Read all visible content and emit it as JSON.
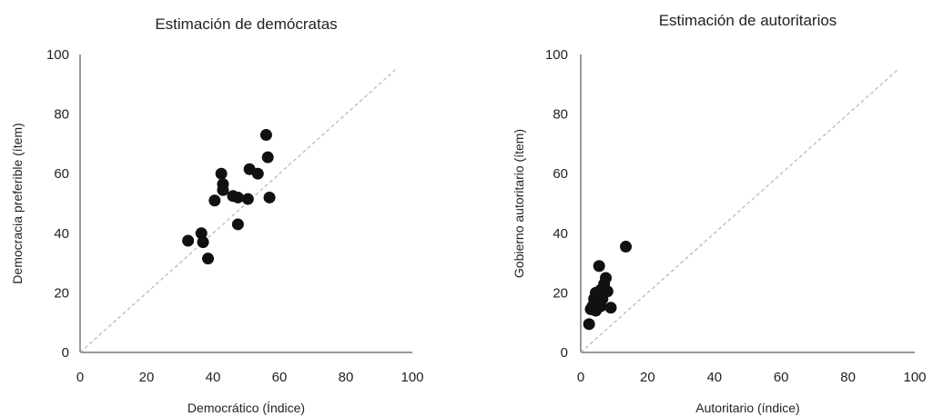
{
  "chart_data": [
    {
      "type": "scatter",
      "title": "Estimación de demócratas",
      "xlabel": "Democrático (Índice)",
      "ylabel": "Democracia preferible (ítem)",
      "xlim": [
        0,
        100
      ],
      "ylim": [
        0,
        100
      ],
      "xticks": [
        "0",
        "20",
        "40",
        "60",
        "80",
        "100"
      ],
      "yticks": [
        "0",
        "20",
        "40",
        "60",
        "80",
        "100"
      ],
      "reference_line": "y = x (dashed, gray)",
      "grid": false,
      "points": [
        {
          "x": 32.5,
          "y": 37.5
        },
        {
          "x": 36.5,
          "y": 40
        },
        {
          "x": 37,
          "y": 37
        },
        {
          "x": 38.5,
          "y": 31.5
        },
        {
          "x": 40.5,
          "y": 51
        },
        {
          "x": 42.5,
          "y": 60
        },
        {
          "x": 43,
          "y": 56.5
        },
        {
          "x": 43,
          "y": 54.5
        },
        {
          "x": 46,
          "y": 52.5
        },
        {
          "x": 47.5,
          "y": 52
        },
        {
          "x": 47.5,
          "y": 43
        },
        {
          "x": 50.5,
          "y": 51.5
        },
        {
          "x": 51,
          "y": 61.5
        },
        {
          "x": 53.5,
          "y": 60
        },
        {
          "x": 56,
          "y": 73
        },
        {
          "x": 56.5,
          "y": 65.5
        },
        {
          "x": 57,
          "y": 52
        }
      ]
    },
    {
      "type": "scatter",
      "title": "Estimación de autoritarios",
      "xlabel": "Autoritario (índice)",
      "ylabel": "Gobierno autoritario (ítem)",
      "xlim": [
        0,
        100
      ],
      "ylim": [
        0,
        100
      ],
      "xticks": [
        "0",
        "20",
        "40",
        "60",
        "80",
        "100"
      ],
      "yticks": [
        "0",
        "20",
        "40",
        "60",
        "80",
        "100"
      ],
      "reference_line": "y = x (dashed, gray)",
      "grid": false,
      "points": [
        {
          "x": 2.5,
          "y": 9.5
        },
        {
          "x": 3,
          "y": 14.5
        },
        {
          "x": 3.5,
          "y": 15.5
        },
        {
          "x": 4,
          "y": 18
        },
        {
          "x": 4.5,
          "y": 20
        },
        {
          "x": 4.5,
          "y": 14
        },
        {
          "x": 5,
          "y": 16.5
        },
        {
          "x": 5.5,
          "y": 29
        },
        {
          "x": 5.5,
          "y": 19
        },
        {
          "x": 6,
          "y": 21
        },
        {
          "x": 6,
          "y": 15.5
        },
        {
          "x": 6.5,
          "y": 18
        },
        {
          "x": 7,
          "y": 23
        },
        {
          "x": 7.5,
          "y": 25
        },
        {
          "x": 8,
          "y": 20.5
        },
        {
          "x": 9,
          "y": 15
        },
        {
          "x": 13.5,
          "y": 35.5
        }
      ]
    }
  ]
}
